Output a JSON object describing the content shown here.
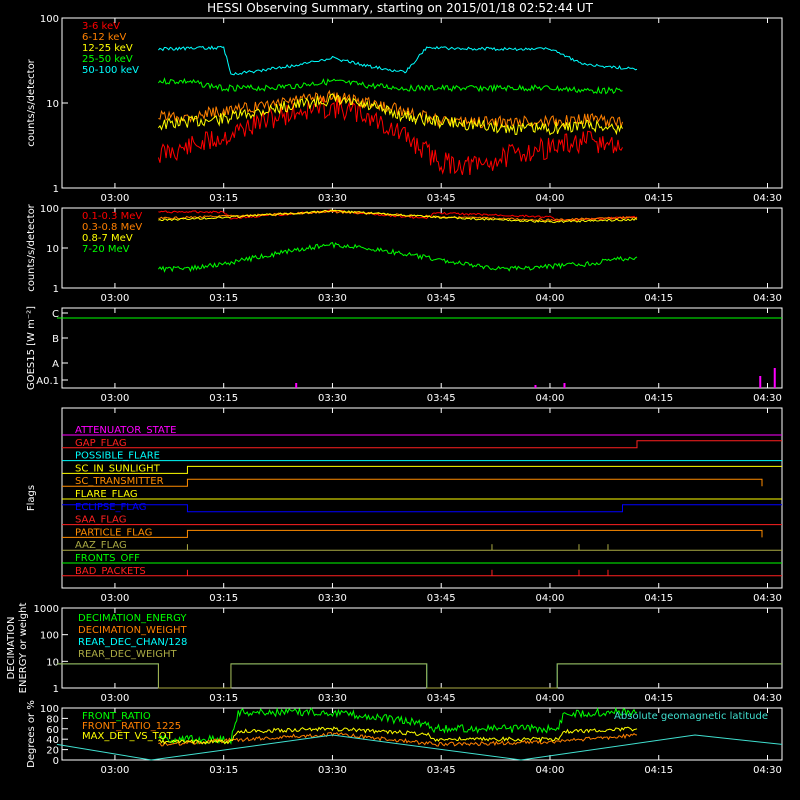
{
  "title": "HESSI Observing Summary, starting on 2015/01/18 02:52:44 UT",
  "time_ticks": [
    "03:00",
    "03:15",
    "03:30",
    "03:45",
    "04:00",
    "04:15",
    "04:30"
  ],
  "colors": {
    "red": "#ff0000",
    "orange": "#ff8000",
    "yellow": "#ffff00",
    "green": "#00ff00",
    "cyan": "#00ffff",
    "magenta": "#ff00ff",
    "blue": "#0000ff",
    "olive": "#aaaa44",
    "white": "#ffffff",
    "flag_orange": "#ff8c00",
    "flag_red": "#ff2020"
  },
  "chart_data": [
    {
      "id": "counts_low",
      "type": "line",
      "ylabel": "counts/s/detector",
      "yscale": "log",
      "ylim": [
        1,
        100
      ],
      "y_ticks": [
        "1",
        "10",
        "100"
      ],
      "legend": [
        "3-6 keV",
        "6-12 keV",
        "12-25 keV",
        "25-50 keV",
        "50-100 keV"
      ],
      "series": [
        {
          "name": "3-6 keV",
          "color": "#ff0000",
          "x": [
            "03:06",
            "03:10",
            "03:15",
            "03:20",
            "03:25",
            "03:30",
            "03:35",
            "03:40",
            "03:45",
            "03:50",
            "03:55",
            "04:00",
            "04:05",
            "04:10"
          ],
          "y": [
            2.5,
            3,
            4,
            6,
            8,
            9,
            7,
            4,
            2,
            1.8,
            2.5,
            3,
            3.5,
            3
          ]
        },
        {
          "name": "6-12 keV",
          "color": "#ff8000",
          "x": [
            "03:06",
            "03:10",
            "03:15",
            "03:20",
            "03:25",
            "03:30",
            "03:35",
            "03:40",
            "03:45",
            "03:50",
            "03:55",
            "04:00",
            "04:05",
            "04:10"
          ],
          "y": [
            7,
            7,
            8,
            9,
            11,
            12,
            10,
            8,
            6,
            6,
            6,
            6,
            6.5,
            6
          ]
        },
        {
          "name": "12-25 keV",
          "color": "#ffff00",
          "x": [
            "03:06",
            "03:10",
            "03:15",
            "03:20",
            "03:25",
            "03:30",
            "03:35",
            "03:40",
            "03:45",
            "03:50",
            "03:55",
            "04:00",
            "04:05",
            "04:10"
          ],
          "y": [
            5.5,
            6,
            6.5,
            8,
            9.5,
            11,
            9,
            7,
            6,
            5.5,
            5,
            5,
            5.5,
            5
          ]
        },
        {
          "name": "25-50 keV",
          "color": "#00ff00",
          "x": [
            "03:06",
            "03:10",
            "03:15",
            "03:20",
            "03:25",
            "03:30",
            "03:35",
            "03:40",
            "03:45",
            "03:50",
            "03:55",
            "04:00",
            "04:05",
            "04:10"
          ],
          "y": [
            18,
            18,
            15,
            15,
            16,
            18,
            16,
            15,
            15,
            15,
            15,
            15,
            14,
            14
          ]
        },
        {
          "name": "50-100 keV",
          "color": "#00ffff",
          "x": [
            "03:06",
            "03:15",
            "03:16",
            "03:20",
            "03:25",
            "03:30",
            "03:35",
            "03:40",
            "03:43",
            "03:45",
            "03:55",
            "04:00",
            "04:05",
            "04:10",
            "04:12"
          ],
          "y": [
            43,
            45,
            22,
            24,
            28,
            34,
            27,
            23,
            45,
            44,
            43,
            43,
            28,
            26,
            25
          ]
        }
      ]
    },
    {
      "id": "counts_high",
      "type": "line",
      "ylabel": "counts/s/detector",
      "yscale": "log",
      "ylim": [
        1,
        100
      ],
      "y_ticks": [
        "1",
        "10",
        "100"
      ],
      "legend": [
        "0.1-0.3 MeV",
        "0.3-0.8 MeV",
        "0.8-7 MeV",
        "7-20 MeV"
      ],
      "series": [
        {
          "name": "0.1-0.3 MeV",
          "color": "#ff0000",
          "x": [
            "03:06",
            "03:15",
            "03:16",
            "03:30",
            "03:43",
            "03:44",
            "04:00",
            "04:01",
            "04:12"
          ],
          "y": [
            80,
            80,
            55,
            85,
            55,
            75,
            60,
            48,
            60
          ]
        },
        {
          "name": "0.3-0.8 MeV",
          "color": "#ff8000",
          "x": [
            "03:06",
            "03:15",
            "03:30",
            "03:45",
            "04:00",
            "04:12"
          ],
          "y": [
            55,
            62,
            80,
            60,
            50,
            58
          ]
        },
        {
          "name": "0.8-7 MeV",
          "color": "#ffff00",
          "x": [
            "03:06",
            "03:15",
            "03:30",
            "03:45",
            "04:00",
            "04:12"
          ],
          "y": [
            50,
            58,
            85,
            58,
            45,
            52
          ]
        },
        {
          "name": "7-20 MeV",
          "color": "#00ff00",
          "x": [
            "03:06",
            "03:10",
            "03:15",
            "03:20",
            "03:25",
            "03:30",
            "03:35",
            "03:40",
            "03:45",
            "03:50",
            "03:55",
            "04:00",
            "04:05",
            "04:12"
          ],
          "y": [
            3,
            3,
            4,
            6,
            9,
            12,
            10,
            7,
            5,
            3.5,
            3,
            3.5,
            4,
            6
          ]
        }
      ]
    },
    {
      "id": "goes",
      "type": "line",
      "ylabel": "GOES15 [W m⁻²]",
      "y_ticks": [
        "A0.1",
        "A",
        "B",
        "C"
      ],
      "series": [
        {
          "name": "GOES long",
          "color": "#00ff00",
          "x": [
            "02:52",
            "04:32"
          ],
          "y": [
            0.8,
            0.8
          ]
        },
        {
          "name": "GOES short",
          "color": "#ff00ff",
          "x": [
            "03:25",
            "03:58",
            "04:02",
            "04:29",
            "04:31"
          ],
          "y": [
            0.05,
            0.03,
            0.05,
            0.12,
            0.2
          ]
        }
      ]
    },
    {
      "id": "flags",
      "type": "line",
      "ylabel": "Flags",
      "flags": [
        {
          "name": "ATTENUATOR_STATE",
          "color": "#ff00ff",
          "state": "off"
        },
        {
          "name": "GAP_FLAG",
          "color": "#ff2020",
          "state": "on",
          "on_from": "04:12"
        },
        {
          "name": "POSSIBLE_FLARE",
          "color": "#00ffff",
          "state": "off"
        },
        {
          "name": "SC_IN_SUNLIGHT",
          "color": "#ffff00",
          "state": "on",
          "on_from": "03:10",
          "off_at": "04:10"
        },
        {
          "name": "SC_TRANSMITTER",
          "color": "#ff8c00",
          "state": "pulses"
        },
        {
          "name": "FLARE_FLAG",
          "color": "#ffff00",
          "state": "off"
        },
        {
          "name": "ECLIPSE_FLAG",
          "color": "#0000ff",
          "state": "on",
          "off_from": "03:10",
          "on_from": "04:10"
        },
        {
          "name": "SAA_FLAG",
          "color": "#ff2020",
          "state": "off"
        },
        {
          "name": "PARTICLE_FLAG",
          "color": "#ff8c00",
          "state": "pulses"
        },
        {
          "name": "AAZ_FLAG",
          "color": "#aaaa44",
          "state": "spikes"
        },
        {
          "name": "FRONTS_OFF",
          "color": "#00ff00",
          "state": "off"
        },
        {
          "name": "BAD_PACKETS",
          "color": "#ff2020",
          "state": "spikes"
        }
      ]
    },
    {
      "id": "decimation",
      "type": "line",
      "ylabel": "DECIMATION ENERGY or weight",
      "yscale": "log",
      "ylim": [
        1,
        1000
      ],
      "y_ticks": [
        "1",
        "10",
        "100",
        "1000"
      ],
      "legend": [
        "DECIMATION_ENERGY",
        "DECIMATION_WEIGHT",
        "REAR_DEC_CHAN/128",
        "REAR_DEC_WEIGHT"
      ],
      "series": [
        {
          "name": "REAR_DEC_CHAN/128",
          "color": "#00ffff",
          "x": [
            "02:52",
            "03:06",
            "03:16",
            "03:43",
            "04:01",
            "04:32"
          ],
          "y": [
            8,
            1,
            8,
            1,
            8,
            8
          ]
        },
        {
          "name": "REAR_DEC_WEIGHT",
          "color": "#aaaa44",
          "x": [
            "02:52",
            "03:06",
            "03:16",
            "03:43",
            "04:01",
            "04:32"
          ],
          "y": [
            8,
            1,
            8,
            1,
            8,
            8
          ]
        }
      ]
    },
    {
      "id": "ratios",
      "type": "line",
      "ylabel": "Degrees or %",
      "ylim": [
        0,
        100
      ],
      "y_ticks": [
        "0",
        "20",
        "40",
        "60",
        "80",
        "100"
      ],
      "legend": [
        "FRONT_RATIO",
        "FRONT_RATIO_1225",
        "MAX_DET_VS_TOT"
      ],
      "annotation": "Absolute geomagnetic latitude",
      "series": [
        {
          "name": "FRONT_RATIO",
          "color": "#00ff00",
          "x": [
            "03:06",
            "03:16",
            "03:17",
            "03:30",
            "03:43",
            "03:44",
            "04:01",
            "04:02",
            "04:12"
          ],
          "y": [
            40,
            40,
            92,
            92,
            70,
            60,
            60,
            90,
            92
          ]
        },
        {
          "name": "FRONT_RATIO_1225",
          "color": "#ff8000",
          "x": [
            "03:06",
            "03:16",
            "03:30",
            "03:45",
            "04:00",
            "04:12"
          ],
          "y": [
            30,
            38,
            50,
            30,
            35,
            48
          ]
        },
        {
          "name": "MAX_DET_VS_TOT",
          "color": "#ffff00",
          "x": [
            "03:06",
            "03:16",
            "03:17",
            "03:30",
            "03:43",
            "03:44",
            "04:01",
            "04:02",
            "04:12"
          ],
          "y": [
            35,
            35,
            55,
            60,
            50,
            40,
            40,
            55,
            60
          ]
        },
        {
          "name": "Absolute geomagnetic latitude",
          "color": "#40e0d0",
          "x": [
            "02:52",
            "03:05",
            "03:30",
            "03:56",
            "04:20",
            "04:32"
          ],
          "y": [
            30,
            0,
            48,
            0,
            48,
            30
          ]
        }
      ]
    }
  ]
}
